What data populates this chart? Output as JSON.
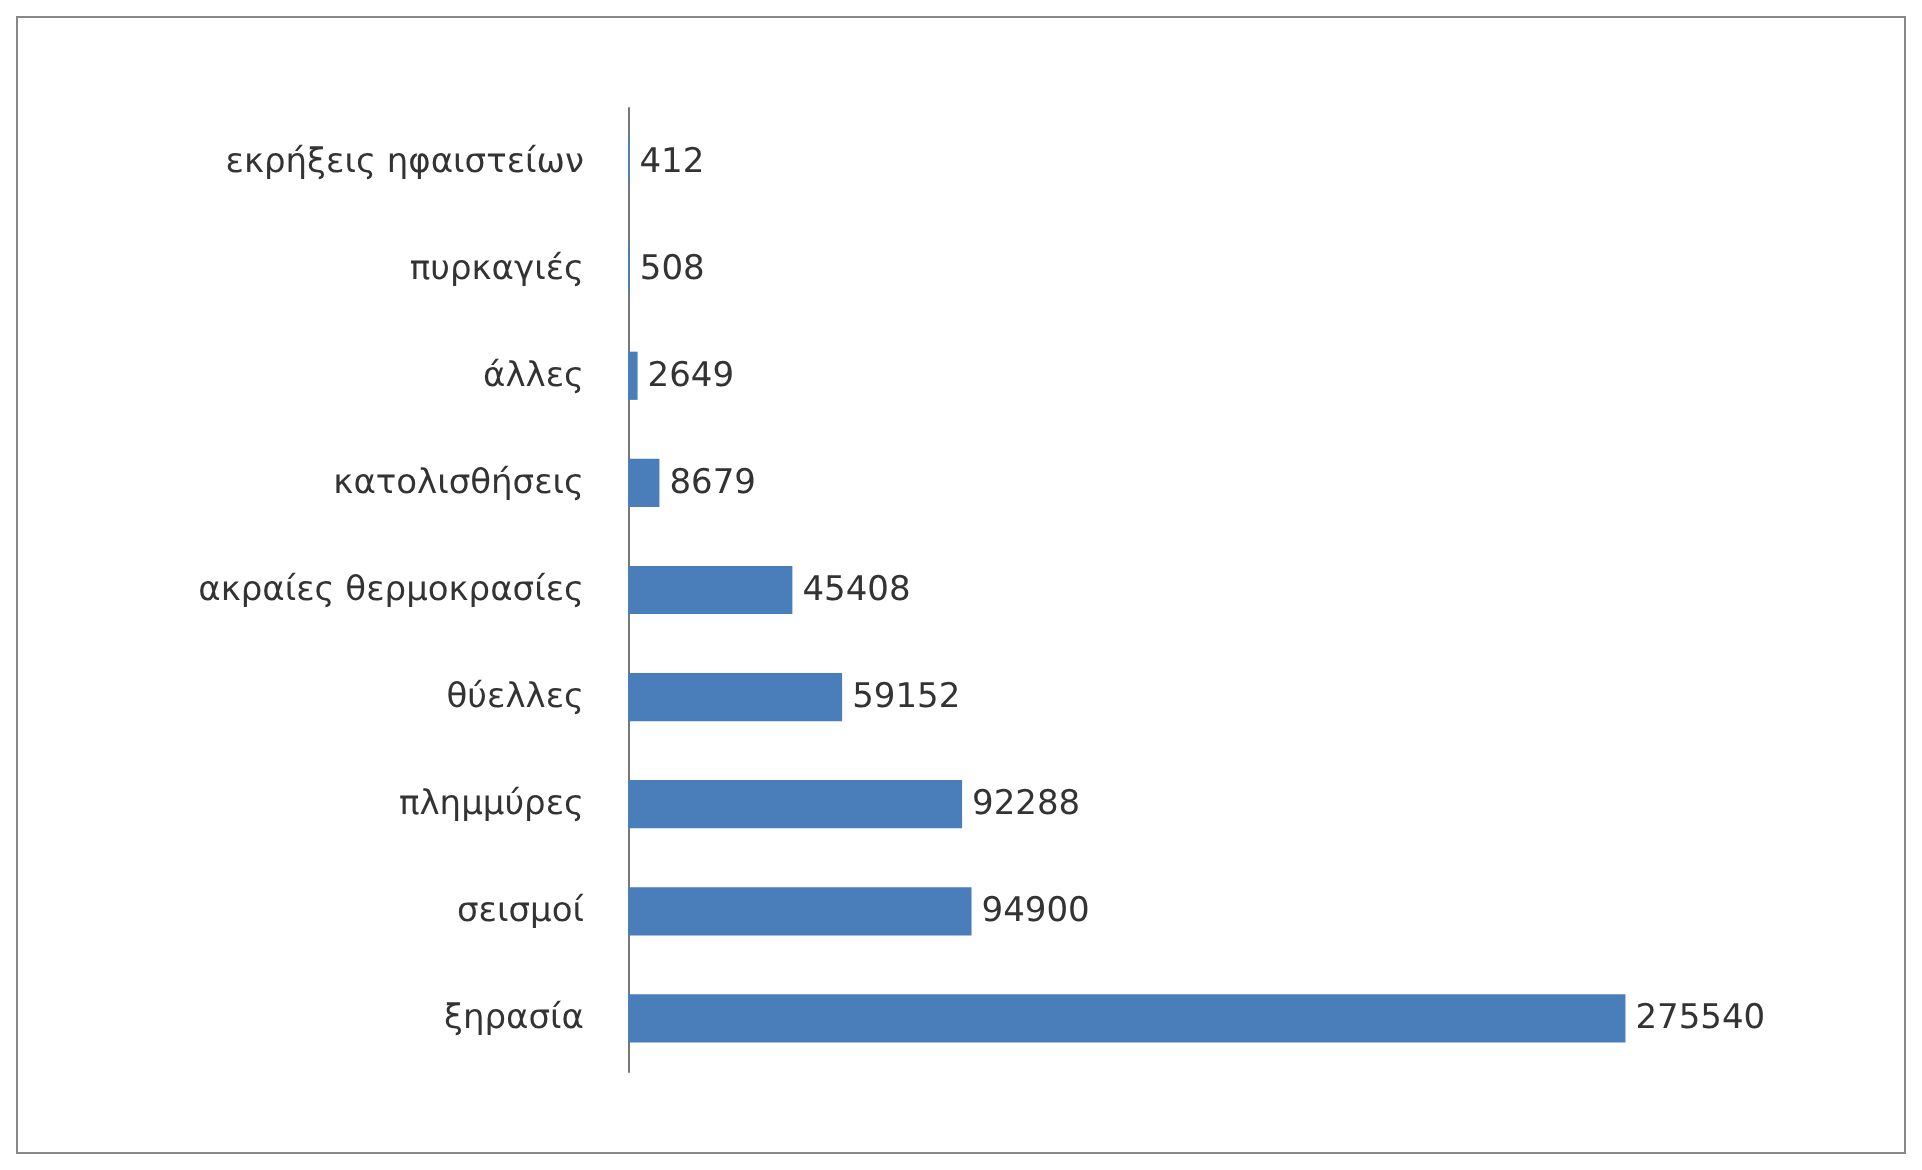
{
  "chart_data": {
    "type": "bar",
    "orientation": "horizontal",
    "categories": [
      "εκρήξεις ηφαιστείων",
      "πυρκαγιές",
      "άλλες",
      "κατολισθήσεις",
      "ακραίες θερμοκρασίες",
      "θύελλες",
      "πλημμύρες",
      "σεισμοί",
      "ξηρασία"
    ],
    "values": [
      412,
      508,
      2649,
      8679,
      45408,
      59152,
      92288,
      94900,
      275540
    ],
    "color": "#4a7ebb",
    "data_labels": true
  }
}
